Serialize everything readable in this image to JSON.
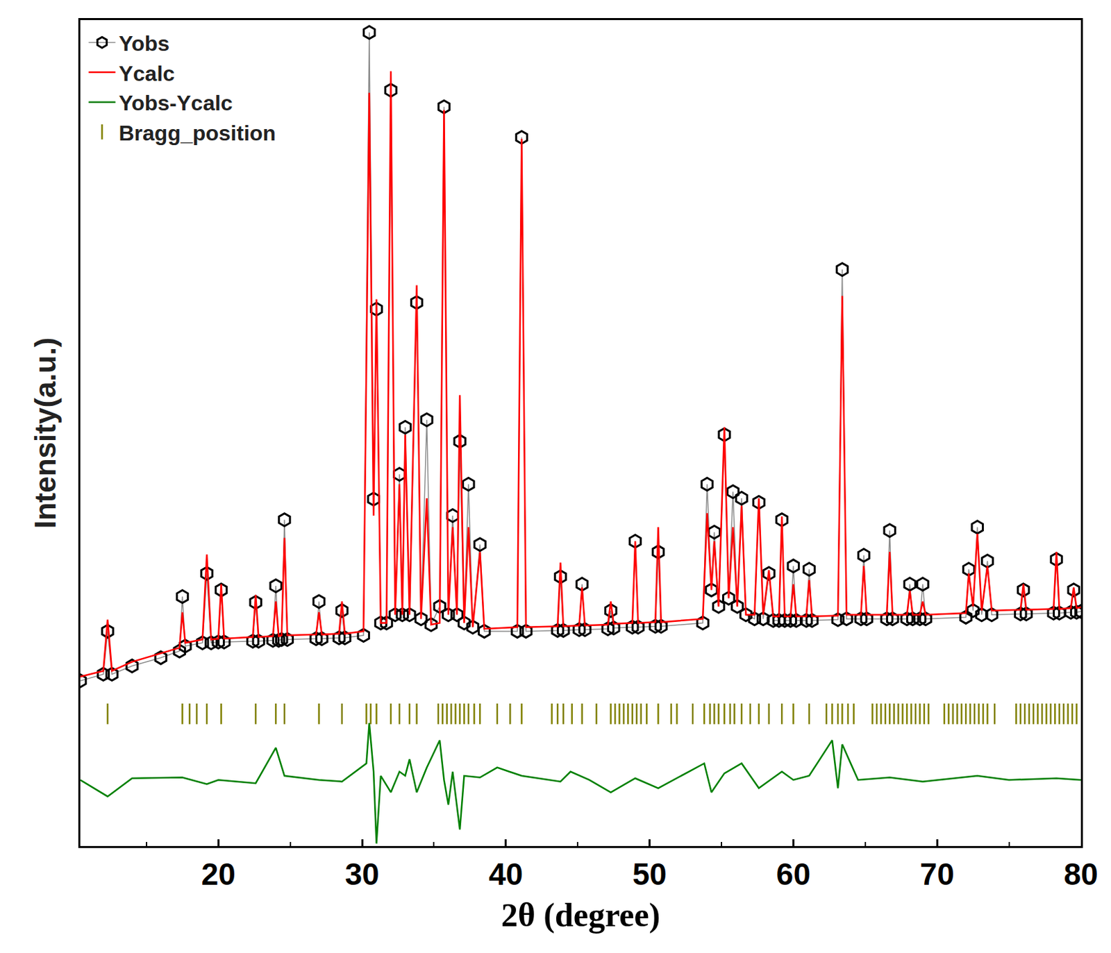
{
  "chart_data": {
    "type": "line",
    "xlabel": "2θ (degree)",
    "ylabel": "Intensity(a.u.)",
    "xlim": [
      10.4,
      80
    ],
    "ylim": [
      0,
      100
    ],
    "xticks": [
      20,
      30,
      40,
      50,
      60,
      70,
      80
    ],
    "tick_labels": "x",
    "legend": "top-left",
    "grid": false,
    "series": [
      {
        "name": "Yobs",
        "color": "#000000",
        "marker": "hexagon-open",
        "line_style": "solid",
        "x": [
          10.4,
          12.0,
          12.3,
          12.6,
          14.0,
          16.0,
          17.3,
          17.5,
          17.7,
          18.9,
          19.2,
          19.5,
          20.0,
          20.2,
          20.4,
          22.4,
          22.6,
          22.8,
          23.8,
          24.0,
          24.2,
          24.4,
          24.6,
          24.8,
          26.8,
          27.0,
          27.2,
          28.4,
          28.6,
          28.8,
          30.1,
          30.5,
          30.8,
          31.0,
          31.3,
          31.7,
          32.0,
          32.3,
          32.6,
          32.8,
          33.0,
          33.3,
          33.8,
          34.1,
          34.5,
          34.8,
          35.4,
          35.7,
          36.0,
          36.3,
          36.6,
          36.8,
          37.1,
          37.4,
          37.7,
          38.2,
          38.5,
          40.8,
          41.1,
          41.4,
          43.6,
          43.8,
          44.0,
          45.1,
          45.3,
          45.5,
          47.1,
          47.3,
          47.5,
          48.8,
          49.0,
          49.2,
          50.4,
          50.6,
          50.8,
          53.7,
          54.0,
          54.3,
          54.5,
          54.8,
          55.2,
          55.5,
          55.8,
          56.1,
          56.4,
          56.7,
          57.3,
          57.6,
          57.9,
          58.3,
          58.6,
          59.0,
          59.2,
          59.4,
          59.8,
          60.0,
          60.2,
          60.9,
          61.1,
          61.3,
          63.1,
          63.4,
          63.7,
          64.7,
          64.9,
          65.1,
          66.5,
          66.7,
          66.9,
          67.9,
          68.1,
          68.3,
          68.8,
          69.0,
          69.2,
          72.0,
          72.2,
          72.5,
          72.8,
          73.1,
          73.5,
          73.8,
          75.8,
          76.0,
          76.2,
          78.1,
          78.3,
          78.5,
          79.3,
          79.5,
          79.7,
          80.0
        ],
        "values": [
          20.0,
          20.8,
          26.0,
          20.8,
          21.8,
          22.8,
          23.6,
          30.2,
          24.2,
          24.6,
          33.0,
          24.6,
          24.7,
          31.0,
          24.7,
          24.8,
          29.5,
          24.8,
          24.9,
          31.5,
          24.9,
          25.0,
          39.5,
          25.0,
          25.1,
          29.6,
          25.1,
          25.2,
          28.5,
          25.2,
          25.5,
          98.5,
          42,
          65.0,
          27,
          27,
          91.5,
          28,
          45,
          28,
          50.7,
          28,
          65.8,
          27.5,
          51.6,
          26.8,
          29,
          89.5,
          28,
          40,
          28,
          49,
          27,
          43.8,
          26.5,
          36.5,
          26,
          26,
          85.8,
          26,
          26.1,
          32.6,
          26.1,
          26.2,
          31.7,
          26.2,
          26.3,
          28.5,
          26.4,
          26.5,
          36.9,
          26.5,
          26.6,
          35.6,
          26.6,
          27,
          43.8,
          31,
          38,
          29,
          49.8,
          30,
          42.9,
          29,
          42.1,
          28,
          27.5,
          41.6,
          27.5,
          33,
          27.3,
          27.3,
          39.5,
          27.3,
          27.3,
          33.9,
          27.3,
          27.3,
          33.5,
          27.3,
          27.4,
          69.8,
          27.5,
          27.5,
          35.2,
          27.5,
          27.5,
          38.2,
          27.5,
          27.5,
          31.7,
          27.5,
          27.5,
          31.7,
          27.5,
          27.7,
          33.5,
          28.5,
          38.6,
          28,
          34.5,
          28,
          28.1,
          31,
          28.1,
          28.2,
          34.7,
          28.2,
          28.3,
          31,
          28.3,
          28.4
        ]
      },
      {
        "name": "Ycalc",
        "color": "#ff0000",
        "marker": "none",
        "line_style": "solid",
        "x": [
          10.4,
          12.0,
          12.3,
          12.6,
          14.0,
          16.0,
          17.3,
          17.5,
          17.7,
          18.9,
          19.2,
          19.5,
          20.0,
          20.2,
          20.4,
          22.4,
          22.6,
          22.8,
          23.8,
          24.0,
          24.2,
          24.4,
          24.6,
          24.8,
          26.8,
          27.0,
          27.2,
          28.4,
          28.6,
          28.8,
          30.1,
          30.5,
          30.8,
          31.0,
          31.3,
          31.7,
          32.0,
          32.3,
          32.6,
          32.8,
          33.0,
          33.3,
          33.8,
          34.1,
          34.5,
          34.8,
          35.4,
          35.7,
          36.0,
          36.3,
          36.6,
          36.8,
          37.1,
          37.4,
          37.7,
          38.2,
          38.5,
          40.8,
          41.1,
          41.4,
          43.6,
          43.8,
          44.0,
          45.1,
          45.3,
          45.5,
          47.1,
          47.3,
          47.5,
          48.8,
          49.0,
          49.2,
          50.4,
          50.6,
          50.8,
          53.7,
          54.0,
          54.3,
          54.5,
          54.8,
          55.2,
          55.5,
          55.8,
          56.1,
          56.4,
          56.7,
          57.3,
          57.6,
          57.9,
          58.3,
          58.6,
          59.0,
          59.2,
          59.4,
          59.8,
          60.0,
          60.2,
          60.9,
          61.1,
          61.3,
          63.1,
          63.4,
          63.7,
          64.7,
          64.9,
          65.1,
          66.5,
          66.7,
          66.9,
          67.9,
          68.1,
          68.3,
          68.8,
          69.0,
          69.2,
          72.0,
          72.2,
          72.5,
          72.8,
          73.1,
          73.5,
          73.8,
          75.8,
          76.0,
          76.2,
          78.1,
          78.3,
          78.5,
          79.3,
          79.5,
          79.7,
          80.0
        ],
        "values": [
          20.5,
          21.2,
          27.4,
          21.2,
          22.3,
          23.3,
          24.0,
          28.3,
          24.6,
          25.0,
          35.3,
          25.0,
          25.1,
          31.7,
          25.1,
          25.3,
          30.4,
          25.3,
          25.4,
          29.6,
          25.4,
          25.5,
          37.3,
          25.5,
          25.6,
          28.3,
          25.6,
          25.7,
          29.6,
          25.7,
          26.0,
          91.2,
          40,
          66.2,
          27,
          27,
          93.8,
          28,
          43.8,
          28,
          49.8,
          28,
          67.9,
          27.5,
          42.1,
          26.8,
          27,
          89.1,
          28,
          38.6,
          28,
          54.6,
          27,
          38.6,
          26.5,
          35.6,
          26.3,
          26.5,
          85.6,
          26.5,
          26.6,
          34.3,
          26.6,
          26.7,
          31.3,
          26.7,
          26.8,
          29.6,
          26.9,
          27.0,
          36.9,
          27.0,
          27.1,
          38.6,
          27.1,
          27.5,
          40.3,
          31,
          36.9,
          29,
          50.7,
          30,
          38.6,
          29,
          41.2,
          28,
          28,
          42.1,
          28,
          33.4,
          27.8,
          27.8,
          39.9,
          27.8,
          27.8,
          31.7,
          27.8,
          27.8,
          32.2,
          27.8,
          27.9,
          66.6,
          28,
          28,
          33.9,
          28,
          28,
          35.6,
          28,
          28,
          30.9,
          28,
          28,
          29.6,
          28,
          28.2,
          33.0,
          29,
          37.8,
          28.5,
          33.9,
          28.5,
          28.6,
          31.7,
          28.6,
          28.7,
          35.6,
          28.7,
          28.8,
          31.3,
          28.8,
          28.9
        ]
      },
      {
        "name": "Yobs-Ycalc",
        "color": "#008000",
        "marker": "none",
        "line_style": "solid",
        "x": [
          10.4,
          12.3,
          14,
          17.5,
          19.2,
          20,
          22.6,
          24.0,
          24.6,
          27,
          28.6,
          30.3,
          30.5,
          30.8,
          31.0,
          31.3,
          32.0,
          32.6,
          33.0,
          33.3,
          33.8,
          34.5,
          35.4,
          35.7,
          36.0,
          36.3,
          36.8,
          37.1,
          38.2,
          39.4,
          41.1,
          43.8,
          44.5,
          45.8,
          47.3,
          49,
          50.6,
          53.8,
          54.3,
          55.2,
          56.4,
          57.6,
          59.2,
          60.0,
          61.1,
          62.7,
          63.1,
          63.4,
          64.5,
          66.7,
          69,
          72.8,
          75,
          78.3,
          80
        ],
        "values": [
          8.0,
          6.0,
          8.2,
          8.3,
          7.5,
          8.0,
          7.6,
          11.9,
          8.5,
          8.0,
          7.8,
          10,
          14.9,
          9,
          0.3,
          8.5,
          6.5,
          9,
          8.5,
          10.5,
          6.5,
          9.5,
          12.8,
          8,
          5,
          9,
          2.0,
          8.5,
          8.3,
          9.5,
          8.5,
          7.8,
          9,
          8.0,
          6.5,
          8.2,
          7.0,
          10.0,
          6.5,
          8.8,
          10,
          7,
          9,
          8.0,
          8.5,
          12.8,
          7,
          12.3,
          8.0,
          8.3,
          7.8,
          8.5,
          8,
          8.2,
          8.0
        ]
      },
      {
        "name": "Bragg_position",
        "color": "#808000",
        "type": "scatter",
        "marker": "line-ns",
        "line_style": "none",
        "x": [
          12.3,
          17.5,
          18.0,
          18.5,
          19.2,
          20.2,
          22.6,
          24.0,
          24.6,
          27.0,
          28.6,
          30.3,
          30.6,
          31.0,
          32.0,
          32.6,
          33.3,
          33.8,
          35.3,
          35.6,
          35.9,
          36.2,
          36.5,
          36.8,
          37.1,
          37.4,
          37.8,
          38.2,
          39.4,
          40.3,
          41.1,
          43.2,
          43.6,
          44.0,
          44.6,
          45.3,
          46.3,
          47.3,
          47.6,
          47.9,
          48.2,
          48.5,
          48.8,
          49.1,
          49.4,
          49.8,
          50.6,
          51.5,
          51.9,
          53.0,
          53.8,
          54.2,
          54.5,
          54.8,
          55.2,
          55.6,
          55.9,
          56.4,
          57.0,
          57.6,
          58.3,
          59.2,
          60.0,
          61.1,
          62.3,
          62.7,
          63.1,
          63.4,
          63.8,
          64.2,
          65.5,
          65.8,
          66.1,
          66.4,
          66.7,
          67.0,
          67.3,
          67.6,
          67.9,
          68.2,
          68.5,
          68.8,
          69.1,
          69.4,
          70.5,
          70.8,
          71.1,
          71.4,
          71.7,
          72.0,
          72.3,
          72.6,
          72.9,
          73.2,
          73.5,
          74.0,
          75.5,
          75.8,
          76.1,
          76.4,
          76.7,
          77.0,
          77.3,
          77.6,
          77.9,
          78.2,
          78.5,
          78.8,
          79.1,
          79.4,
          79.7
        ],
        "values": [
          16,
          16,
          16,
          16,
          16,
          16,
          16,
          16,
          16,
          16,
          16,
          16,
          16,
          16,
          16,
          16,
          16,
          16,
          16,
          16,
          16,
          16,
          16,
          16,
          16,
          16,
          16,
          16,
          16,
          16,
          16,
          16,
          16,
          16,
          16,
          16,
          16,
          16,
          16,
          16,
          16,
          16,
          16,
          16,
          16,
          16,
          16,
          16,
          16,
          16,
          16,
          16,
          16,
          16,
          16,
          16,
          16,
          16,
          16,
          16,
          16,
          16,
          16,
          16,
          16,
          16,
          16,
          16,
          16,
          16,
          16,
          16,
          16,
          16,
          16,
          16,
          16,
          16,
          16,
          16,
          16,
          16,
          16,
          16,
          16,
          16,
          16,
          16,
          16,
          16,
          16,
          16,
          16,
          16,
          16,
          16,
          16,
          16,
          16,
          16,
          16,
          16,
          16,
          16,
          16,
          16,
          16,
          16,
          16,
          16,
          16
        ]
      }
    ]
  }
}
